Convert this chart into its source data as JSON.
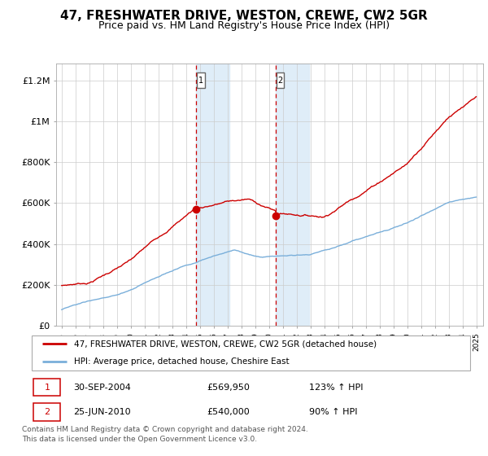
{
  "title": "47, FRESHWATER DRIVE, WESTON, CREWE, CW2 5GR",
  "subtitle": "Price paid vs. HM Land Registry's House Price Index (HPI)",
  "title_fontsize": 11,
  "subtitle_fontsize": 9,
  "red_label": "47, FRESHWATER DRIVE, WESTON, CREWE, CW2 5GR (detached house)",
  "blue_label": "HPI: Average price, detached house, Cheshire East",
  "sale1_date": "30-SEP-2004",
  "sale1_price": 569950,
  "sale1_pct": "123%",
  "sale2_date": "25-JUN-2010",
  "sale2_price": 540000,
  "sale2_pct": "90%",
  "footer": "Contains HM Land Registry data © Crown copyright and database right 2024.\nThis data is licensed under the Open Government Licence v3.0.",
  "sale1_x": 2004.75,
  "sale2_x": 2010.5,
  "shade_color": "#daeaf7",
  "red_color": "#cc0000",
  "blue_color": "#7aafda",
  "grid_color": "#cccccc"
}
